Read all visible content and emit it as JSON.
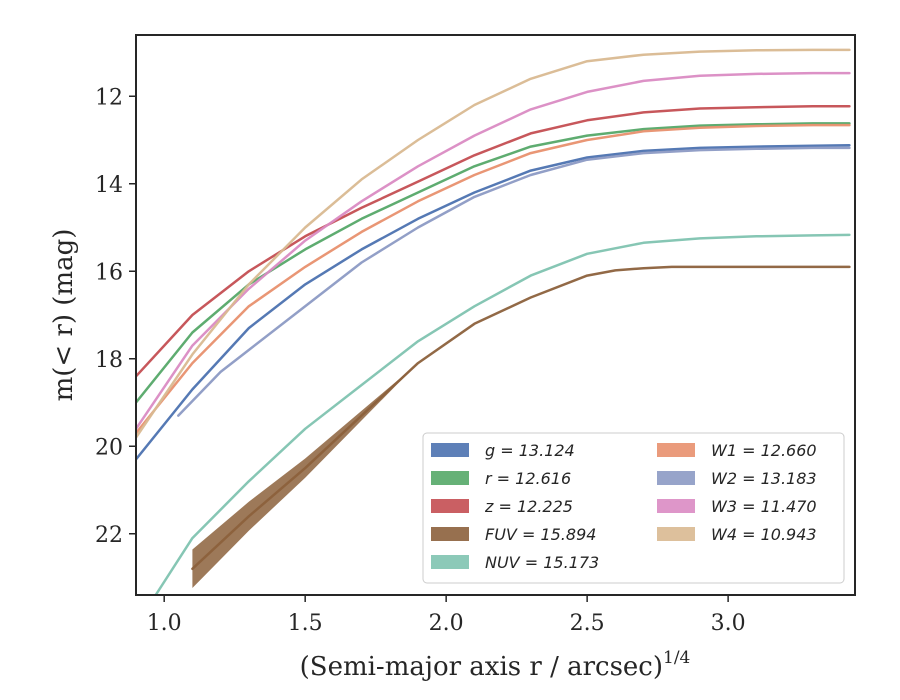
{
  "chart_data": {
    "type": "line",
    "title": "",
    "xlabel": "(Semi-major axis r / arcsec)",
    "xlabel_superscript": "1/4",
    "ylabel": "m(< r) (mag)",
    "xlim": [
      0.9,
      3.45
    ],
    "ylim": [
      23.4,
      10.6
    ],
    "y_inverted": true,
    "x_ticks": [
      1.0,
      1.5,
      2.0,
      2.5,
      3.0
    ],
    "x_tick_labels": [
      "1.0",
      "1.5",
      "2.0",
      "2.5",
      "3.0"
    ],
    "y_ticks": [
      12,
      14,
      16,
      18,
      20,
      22
    ],
    "y_tick_labels": [
      "12",
      "14",
      "16",
      "18",
      "20",
      "22"
    ],
    "grid": false,
    "legend_position": "lower-right",
    "series": [
      {
        "name": "g = 13.124",
        "band": "g",
        "color": "#4c72b0",
        "x": [
          0.9,
          1.1,
          1.3,
          1.5,
          1.7,
          1.9,
          2.1,
          2.3,
          2.5,
          2.7,
          2.9,
          3.1,
          3.3,
          3.43
        ],
        "y": [
          20.3,
          18.7,
          17.3,
          16.3,
          15.5,
          14.8,
          14.2,
          13.7,
          13.4,
          13.25,
          13.18,
          13.15,
          13.13,
          13.12
        ]
      },
      {
        "name": "r = 12.616",
        "band": "r",
        "color": "#55a868",
        "x": [
          0.9,
          1.1,
          1.3,
          1.5,
          1.7,
          1.9,
          2.1,
          2.3,
          2.5,
          2.7,
          2.9,
          3.1,
          3.3,
          3.43
        ],
        "y": [
          19.0,
          17.4,
          16.3,
          15.5,
          14.8,
          14.2,
          13.6,
          13.15,
          12.9,
          12.75,
          12.67,
          12.64,
          12.62,
          12.62
        ]
      },
      {
        "name": "z = 12.225",
        "band": "z",
        "color": "#c44e52",
        "x": [
          0.9,
          1.1,
          1.3,
          1.5,
          1.7,
          1.9,
          2.1,
          2.3,
          2.5,
          2.7,
          2.9,
          3.1,
          3.3,
          3.43
        ],
        "y": [
          18.4,
          17.0,
          16.0,
          15.2,
          14.55,
          13.95,
          13.35,
          12.85,
          12.55,
          12.37,
          12.28,
          12.25,
          12.23,
          12.23
        ]
      },
      {
        "name": "FUV = 15.894",
        "band": "FUV",
        "color": "#8c613c",
        "x": [
          1.1,
          1.3,
          1.5,
          1.7,
          1.9,
          2.1,
          2.3,
          2.5,
          2.6,
          2.7,
          2.8,
          2.9,
          3.2,
          3.43
        ],
        "y": [
          22.8,
          21.6,
          20.5,
          19.3,
          18.1,
          17.2,
          16.6,
          16.1,
          15.98,
          15.93,
          15.9,
          15.9,
          15.9,
          15.9
        ]
      },
      {
        "name": "NUV = 15.173",
        "band": "NUV",
        "color": "#7fc3b0",
        "x": [
          0.97,
          1.1,
          1.3,
          1.5,
          1.7,
          1.9,
          2.1,
          2.3,
          2.5,
          2.7,
          2.9,
          3.1,
          3.3,
          3.43
        ],
        "y": [
          23.4,
          22.1,
          20.8,
          19.6,
          18.6,
          17.6,
          16.8,
          16.1,
          15.6,
          15.35,
          15.25,
          15.2,
          15.18,
          15.17
        ]
      },
      {
        "name": "W1 = 12.660",
        "band": "W1",
        "color": "#e8906e",
        "x": [
          0.9,
          1.1,
          1.3,
          1.5,
          1.7,
          1.9,
          2.1,
          2.3,
          2.5,
          2.7,
          2.9,
          3.1,
          3.3,
          3.43
        ],
        "y": [
          19.7,
          18.1,
          16.8,
          15.9,
          15.1,
          14.4,
          13.8,
          13.3,
          13.0,
          12.8,
          12.72,
          12.68,
          12.66,
          12.66
        ]
      },
      {
        "name": "W2 = 13.183",
        "band": "W2",
        "color": "#8c9ac4",
        "x": [
          1.05,
          1.2,
          1.3,
          1.5,
          1.7,
          1.9,
          2.1,
          2.3,
          2.5,
          2.7,
          2.9,
          3.1,
          3.3,
          3.43
        ],
        "y": [
          19.3,
          18.3,
          17.8,
          16.8,
          15.8,
          15.0,
          14.3,
          13.8,
          13.45,
          13.3,
          13.23,
          13.2,
          13.18,
          13.18
        ]
      },
      {
        "name": "W3 = 11.470",
        "band": "W3",
        "color": "#da8bc3",
        "x": [
          0.9,
          1.1,
          1.3,
          1.5,
          1.7,
          1.9,
          2.1,
          2.3,
          2.5,
          2.7,
          2.9,
          3.1,
          3.3,
          3.43
        ],
        "y": [
          19.6,
          17.7,
          16.4,
          15.3,
          14.4,
          13.6,
          12.9,
          12.3,
          11.9,
          11.65,
          11.53,
          11.49,
          11.47,
          11.47
        ]
      },
      {
        "name": "W4 = 10.943",
        "band": "W4",
        "color": "#d9b991",
        "x": [
          0.9,
          1.1,
          1.3,
          1.5,
          1.7,
          1.9,
          2.1,
          2.3,
          2.5,
          2.7,
          2.9,
          3.1,
          3.3,
          3.43
        ],
        "y": [
          19.8,
          17.9,
          16.3,
          15.0,
          13.9,
          13.0,
          12.2,
          11.6,
          11.2,
          11.05,
          10.98,
          10.95,
          10.94,
          10.94
        ]
      }
    ],
    "legend_order": [
      [
        "g",
        "r",
        "z",
        "FUV",
        "NUV"
      ],
      [
        "W1",
        "W2",
        "W3",
        "W4"
      ]
    ]
  }
}
